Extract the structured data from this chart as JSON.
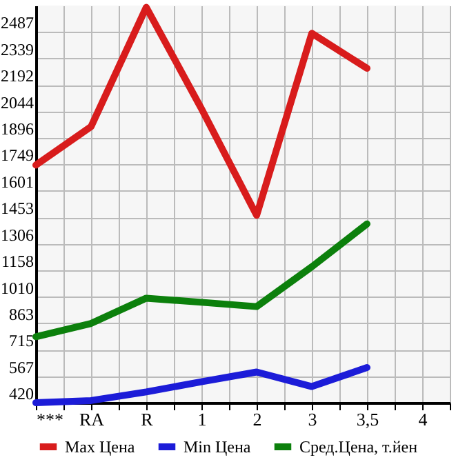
{
  "chart_data": {
    "type": "line",
    "categories": [
      "***",
      "RA",
      "R",
      "1",
      "2",
      "3",
      "3,5",
      "4"
    ],
    "series": [
      {
        "name": "Max Цена",
        "color": "#d81c1c",
        "values": [
          1745,
          1960,
          2625,
          2060,
          1465,
          2480,
          2285,
          null
        ]
      },
      {
        "name": "Min Цена",
        "color": "#1c1cd8",
        "values": [
          420,
          432,
          480,
          537,
          591,
          510,
          616,
          null
        ]
      },
      {
        "name": "Сред.Цена, т.йен",
        "color": "#0c800c",
        "values": [
          788,
          862,
          1003,
          980,
          956,
          1178,
          1417,
          null
        ]
      }
    ],
    "ylim": [
      420,
      2635
    ],
    "yticks": [
      420,
      567,
      715,
      863,
      1010,
      1158,
      1306,
      1453,
      1601,
      1749,
      1896,
      2044,
      2192,
      2339,
      2487
    ],
    "grid": true,
    "legend": "bottom",
    "marker": "none",
    "line_style": "solid"
  }
}
